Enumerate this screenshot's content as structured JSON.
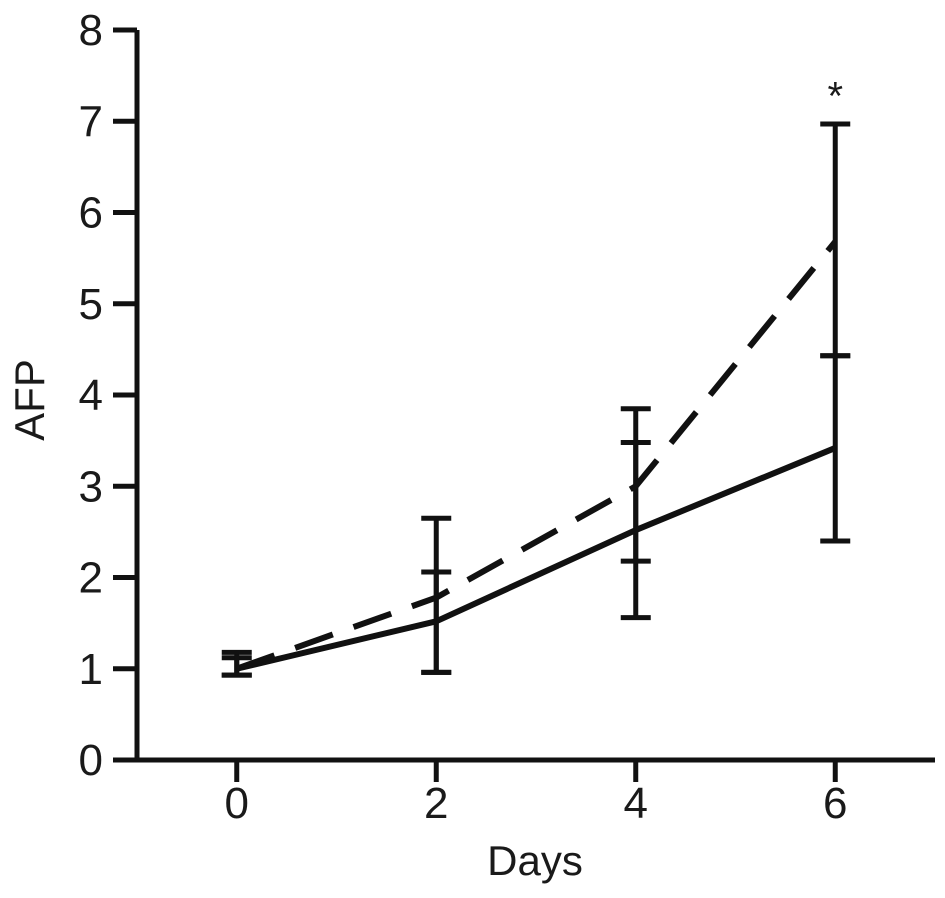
{
  "chart_data": {
    "type": "line",
    "xlabel": "Days",
    "ylabel": "AFP",
    "x": [
      0,
      2,
      4,
      6
    ],
    "xticks": [
      "0",
      "2",
      "4",
      "6"
    ],
    "yticks": [
      "0",
      "1",
      "2",
      "3",
      "4",
      "5",
      "6",
      "7",
      "8"
    ],
    "xlim": [
      -1,
      7
    ],
    "ylim": [
      0,
      8
    ],
    "grid": false,
    "legend": "none",
    "series": [
      {
        "style": "solid",
        "values": [
          1.0,
          1.52,
          2.52,
          3.42
        ],
        "err_low": [
          0.93,
          0.96,
          1.56,
          2.4
        ],
        "err_high": [
          1.12,
          2.06,
          3.48,
          4.43
        ]
      },
      {
        "style": "dashed",
        "values": [
          1.0,
          1.78,
          3.0,
          5.68
        ],
        "err_low": [
          0.93,
          0.96,
          2.18,
          4.43
        ],
        "err_high": [
          1.18,
          2.65,
          3.85,
          6.97
        ]
      }
    ],
    "annotations": [
      {
        "text": "*",
        "x": 6,
        "y": 7.35
      }
    ],
    "colors": {
      "line": "#111111",
      "text": "#1a1a1a"
    }
  }
}
